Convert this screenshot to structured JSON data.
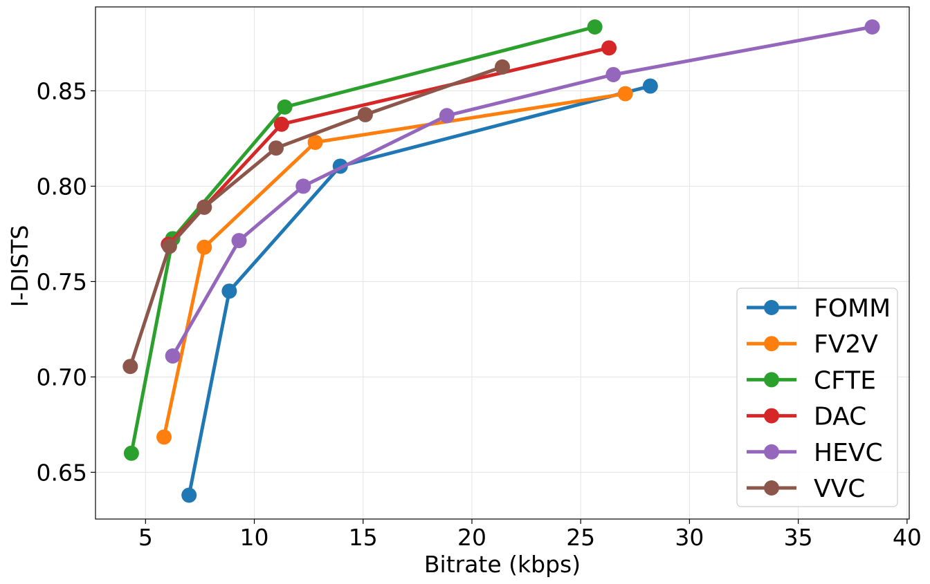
{
  "chart_data": {
    "type": "line",
    "title": "",
    "xlabel": "Bitrate (kbps)",
    "ylabel": "I-DISTS",
    "xlim": [
      2.7,
      40.1
    ],
    "ylim": [
      0.6255,
      0.894
    ],
    "xticks": [
      5,
      10,
      15,
      20,
      25,
      30,
      35,
      40
    ],
    "xtick_labels": [
      "5",
      "10",
      "15",
      "20",
      "25",
      "30",
      "35",
      "40"
    ],
    "yticks": [
      0.65,
      0.7,
      0.75,
      0.8,
      0.85
    ],
    "ytick_labels": [
      "0.65",
      "0.70",
      "0.75",
      "0.80",
      "0.85"
    ],
    "grid": true,
    "legend_position": "lower-right",
    "series": [
      {
        "name": "FOMM",
        "color": "#1f77b4",
        "x": [
          7.0,
          8.85,
          13.95,
          28.2
        ],
        "y": [
          0.638,
          0.745,
          0.8105,
          0.8525
        ]
      },
      {
        "name": "FV2V",
        "color": "#ff7f0e",
        "x": [
          5.85,
          7.7,
          12.8,
          27.05
        ],
        "y": [
          0.6685,
          0.768,
          0.823,
          0.8485
        ]
      },
      {
        "name": "CFTE",
        "color": "#2ca02c",
        "x": [
          4.35,
          6.25,
          11.4,
          25.65
        ],
        "y": [
          0.66,
          0.7725,
          0.8415,
          0.8835
        ]
      },
      {
        "name": "DAC",
        "color": "#d62728",
        "x": [
          6.05,
          7.7,
          11.25,
          26.3
        ],
        "y": [
          0.7695,
          0.789,
          0.8325,
          0.8725
        ]
      },
      {
        "name": "HEVC",
        "color": "#9467bd",
        "x": [
          6.25,
          9.3,
          12.25,
          18.85,
          26.5,
          38.4
        ],
        "y": [
          0.711,
          0.7715,
          0.8,
          0.837,
          0.8585,
          0.8835
        ]
      },
      {
        "name": "VVC",
        "color": "#8c564b",
        "x": [
          4.3,
          6.1,
          7.7,
          11.0,
          15.1,
          21.4
        ],
        "y": [
          0.7055,
          0.7685,
          0.789,
          0.82,
          0.8375,
          0.8625
        ]
      }
    ]
  }
}
